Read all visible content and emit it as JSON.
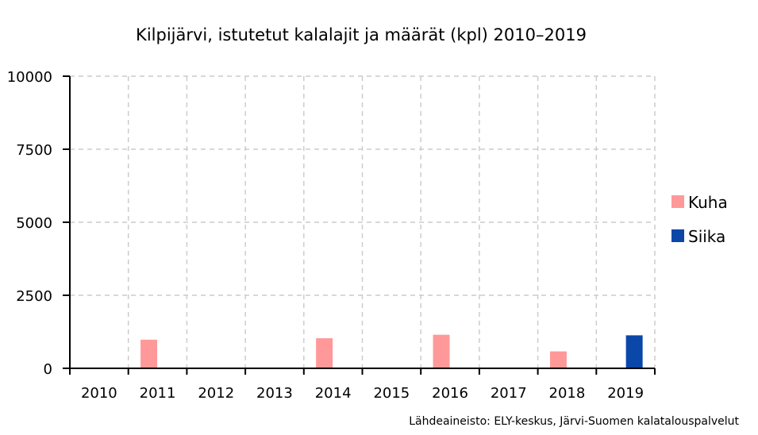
{
  "chart_data": {
    "type": "bar",
    "title": "Kilpijärvi, istutetut kalalajit ja määrät (kpl) 2010–2019",
    "xlabel": "",
    "ylabel": "",
    "categories": [
      "2010",
      "2011",
      "2012",
      "2013",
      "2014",
      "2015",
      "2016",
      "2017",
      "2018",
      "2019"
    ],
    "series": [
      {
        "name": "Kuha",
        "color": "#ff9999",
        "values": [
          0,
          980,
          0,
          0,
          1030,
          0,
          1150,
          0,
          580,
          0
        ]
      },
      {
        "name": "Siika",
        "color": "#0a47a8",
        "values": [
          0,
          0,
          0,
          0,
          0,
          0,
          0,
          0,
          0,
          1130
        ]
      }
    ],
    "ylim": [
      0,
      10000
    ],
    "yticks": [
      "10000",
      "7500",
      "5000",
      "2500",
      "0"
    ],
    "grid": true,
    "legend_position": "right",
    "source": "Lähdeaineisto: ELY-keskus, Järvi-Suomen kalatalouspalvelut"
  }
}
